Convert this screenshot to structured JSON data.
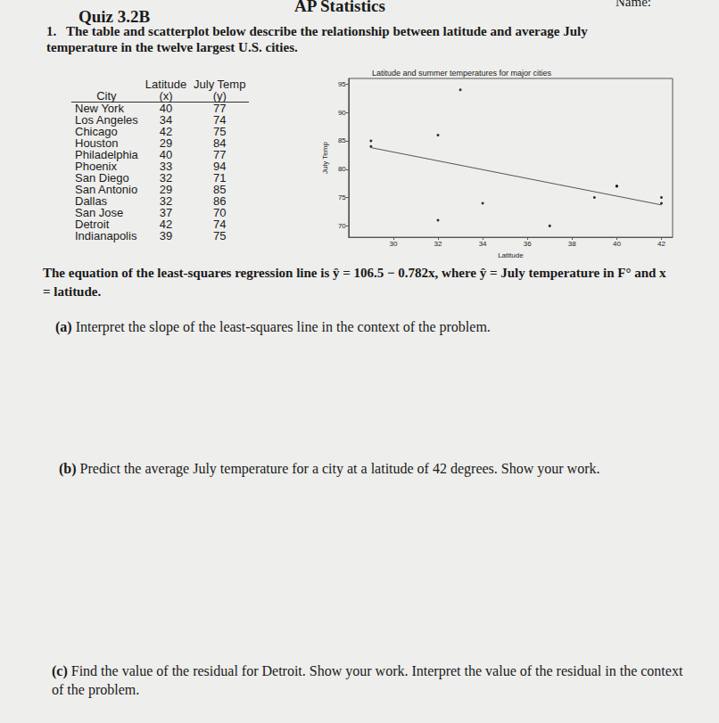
{
  "header": {
    "quiz": "Quiz 3.2B",
    "course": "AP Statistics",
    "name_label": "Name:"
  },
  "question": {
    "number": "1.",
    "text": "The table and scatterplot below describe the relationship between latitude and average July temperature in the twelve largest U.S. cities."
  },
  "table": {
    "columns": [
      "City",
      "Latitude (x)",
      "July Temp (y)"
    ],
    "rows": [
      [
        "New York",
        40,
        77
      ],
      [
        "Los Angeles",
        34,
        74
      ],
      [
        "Chicago",
        42,
        75
      ],
      [
        "Houston",
        29,
        84
      ],
      [
        "Philadelphia",
        40,
        77
      ],
      [
        "Phoenix",
        33,
        94
      ],
      [
        "San Diego",
        32,
        71
      ],
      [
        "San Antonio",
        29,
        85
      ],
      [
        "Dallas",
        32,
        86
      ],
      [
        "San Jose",
        37,
        70
      ],
      [
        "Detroit",
        42,
        74
      ],
      [
        "Indianapolis",
        39,
        75
      ]
    ]
  },
  "chart_data": {
    "type": "scatter",
    "title": "Latitude and summer temperatures for major cities",
    "x_label": "Latitude",
    "y_label": "July Temp",
    "x": [
      40,
      34,
      42,
      29,
      40,
      33,
      32,
      29,
      32,
      37,
      42,
      39
    ],
    "values": [
      77,
      74,
      75,
      84,
      77,
      94,
      71,
      85,
      86,
      70,
      74,
      75
    ],
    "color": "#000000",
    "marker": "circle",
    "fit_line": {
      "x": [
        29,
        42
      ],
      "values": [
        83.8,
        73.7
      ],
      "line_style": "solid"
    },
    "xlim": [
      28,
      42.5
    ],
    "xticks": [
      30,
      32,
      34,
      36,
      38,
      40,
      42
    ],
    "ylim": [
      68,
      96
    ],
    "yticks": [
      70,
      75,
      80,
      85,
      90,
      95
    ],
    "grid": false
  },
  "equation": "The equation of the least-squares regression line is ŷ = 106.5 − 0.782x, where ŷ = July temperature in F° and x = latitude.",
  "parts": [
    {
      "label": "(a)",
      "text": "Interpret the slope of the least-squares line in the context of the problem."
    },
    {
      "label": "(b)",
      "text": "Predict the average July temperature for a city at a latitude of 42 degrees. Show your work."
    },
    {
      "label": "(c)",
      "text": "Find the value of the residual for Detroit. Show your work. Interpret the value of the residual in the context of the problem."
    }
  ]
}
